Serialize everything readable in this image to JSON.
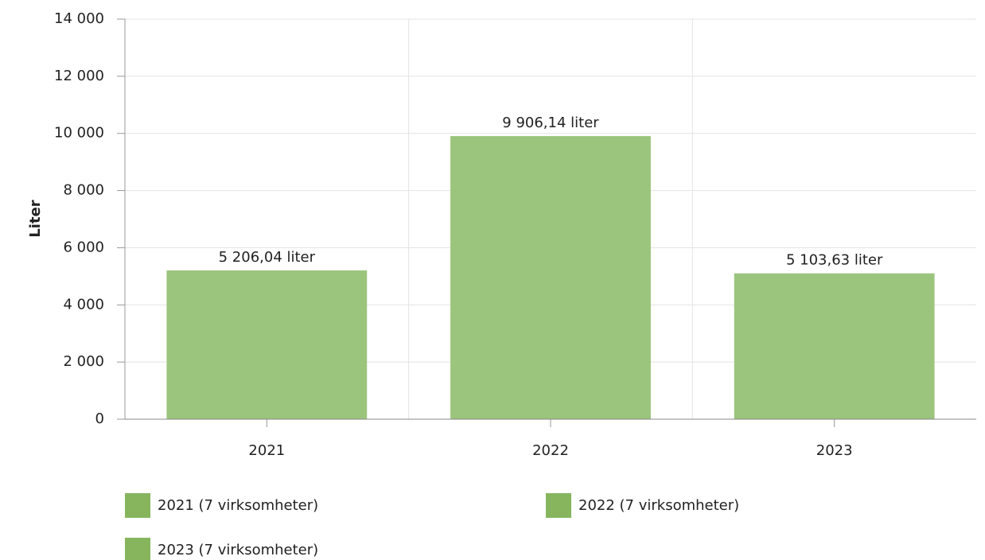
{
  "chart_data": {
    "type": "bar",
    "y_label": "Liter",
    "categories": [
      "2021",
      "2022",
      "2023"
    ],
    "values": [
      5206.04,
      9906.14,
      5103.63
    ],
    "value_labels": [
      "5 206,04 liter",
      "9 906,14 liter",
      "5 103,63 liter"
    ],
    "color": "#9bc47d",
    "legend": [
      "2021 (7 virksomheter)",
      "2022 (7 virksomheter)",
      "2023 (7 virksomheter)"
    ],
    "legend_color": "#86b55e",
    "ylim": [
      0,
      14000
    ],
    "yticks": [
      0,
      {
        "value": 2000,
        "label": "2 000"
      },
      {
        "value": 4000,
        "label": "4 000"
      },
      {
        "value": 6000,
        "label": "6 000"
      },
      {
        "value": 8000,
        "label": "8 000"
      },
      {
        "value": 10000,
        "label": "10 000"
      },
      {
        "value": 12000,
        "label": "12 000"
      },
      {
        "value": 14000,
        "label": "14 000"
      }
    ],
    "grid": true
  }
}
